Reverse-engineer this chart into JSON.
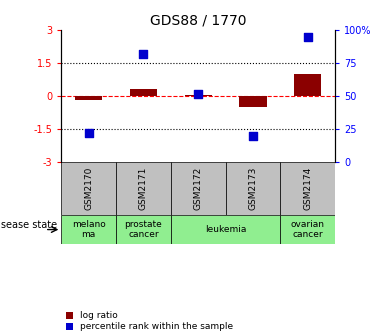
{
  "title": "GDS88 / 1770",
  "samples": [
    "GSM2170",
    "GSM2171",
    "GSM2172",
    "GSM2173",
    "GSM2174"
  ],
  "log_ratio": [
    -0.15,
    0.35,
    0.07,
    -0.5,
    1.0
  ],
  "percentile_rank": [
    22,
    82,
    52,
    20,
    95
  ],
  "disease_states": [
    {
      "label": "melano\nma",
      "span": [
        0,
        1
      ],
      "color": "#90EE90"
    },
    {
      "label": "prostate\ncancer",
      "span": [
        1,
        2
      ],
      "color": "#90EE90"
    },
    {
      "label": "leukemia",
      "span": [
        2,
        4
      ],
      "color": "#90EE90"
    },
    {
      "label": "ovarian\ncancer",
      "span": [
        4,
        5
      ],
      "color": "#90EE90"
    }
  ],
  "bar_color": "#8B0000",
  "scatter_color": "#0000CD",
  "left_ylim": [
    -3,
    3
  ],
  "right_ylim": [
    0,
    100
  ],
  "left_yticks": [
    -3,
    -1.5,
    0,
    1.5,
    3
  ],
  "left_yticklabels": [
    "-3",
    "-1.5",
    "0",
    "1.5",
    "3"
  ],
  "right_yticks": [
    0,
    25,
    50,
    75,
    100
  ],
  "right_yticklabels": [
    "0",
    "25",
    "50",
    "75",
    "100%"
  ],
  "hline_y": [
    1.5,
    -1.5
  ],
  "sample_bg_color": "#C0C0C0",
  "legend_red_label": "log ratio",
  "legend_blue_label": "percentile rank within the sample",
  "disease_label": "disease state"
}
